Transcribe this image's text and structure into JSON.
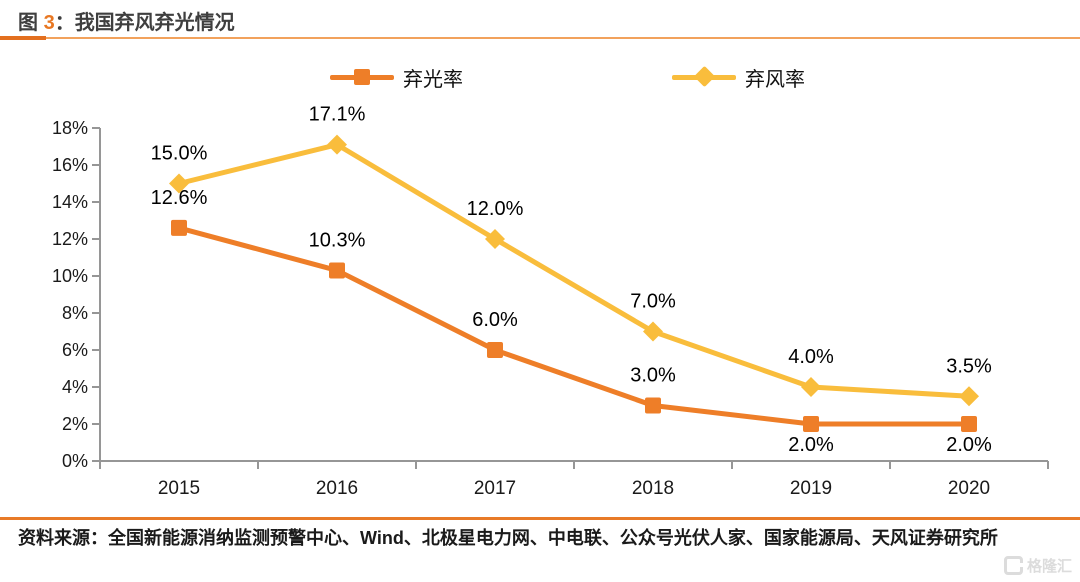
{
  "header": {
    "figure_label": "图",
    "figure_number": "3",
    "separator": "：",
    "title": "我国弃风弃光情况"
  },
  "colors": {
    "series_solar_orange": "#ee7e28",
    "series_wind_yellow": "#f9bd3c",
    "accent_rule_orange": "#e87a28",
    "axis_gray": "#969696"
  },
  "legend": [
    {
      "label": "弃光率",
      "marker": "square",
      "color": "#ee7e28"
    },
    {
      "label": "弃风率",
      "marker": "diamond",
      "color": "#f9bd3c"
    }
  ],
  "chart_data": {
    "type": "line",
    "title": "我国弃风弃光情况",
    "categories": [
      "2015",
      "2016",
      "2017",
      "2018",
      "2019",
      "2020"
    ],
    "series": [
      {
        "name": "弃光率",
        "marker": "square",
        "color": "#ee7e28",
        "values": [
          12.6,
          10.3,
          6.0,
          3.0,
          2.0,
          2.0
        ],
        "labels": [
          "12.6%",
          "10.3%",
          "6.0%",
          "3.0%",
          "2.0%",
          "2.0%"
        ],
        "label_positions": [
          "above",
          "above",
          "above",
          "above",
          "below",
          "below"
        ]
      },
      {
        "name": "弃风率",
        "marker": "diamond",
        "color": "#f9bd3c",
        "values": [
          15.0,
          17.1,
          12.0,
          7.0,
          4.0,
          3.5
        ],
        "labels": [
          "15.0%",
          "17.1%",
          "12.0%",
          "7.0%",
          "4.0%",
          "3.5%"
        ],
        "label_positions": [
          "above",
          "above",
          "above",
          "above",
          "above",
          "above"
        ]
      }
    ],
    "xlabel": "",
    "ylabel": "",
    "ylim": [
      0,
      18
    ],
    "ytick_step": 2,
    "ytick_labels": [
      "0%",
      "2%",
      "4%",
      "6%",
      "8%",
      "10%",
      "12%",
      "14%",
      "16%",
      "18%"
    ],
    "grid": false,
    "legend_position": "top"
  },
  "footer": {
    "source_text": "资料来源：全国新能源消纳监测预警中心、Wind、北极星电力网、中电联、公众号光伏人家、国家能源局、天风证券研究所",
    "watermark": "格隆汇"
  }
}
